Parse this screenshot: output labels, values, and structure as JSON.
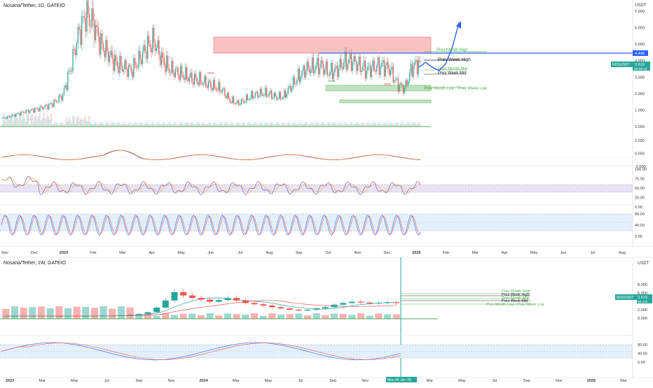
{
  "top_panel": {
    "title": "Nosana/Tether, 1D, GATEIO",
    "currency": "USDT",
    "price_ticks": [
      "7.000",
      "6.000",
      "5.000",
      "4.000",
      "3.000",
      "2.000",
      "1.000",
      "0.000"
    ],
    "macd_ticks": [
      "2.000",
      "0.000",
      "-2.000"
    ],
    "rsi_ticks": [
      "100.00",
      "75.00",
      "50.00",
      "25.00",
      "0.00"
    ],
    "stoch_ticks": [
      "80.00",
      "40.00",
      "0.00"
    ],
    "time_ticks": [
      "Nov",
      "Dec",
      "2024",
      "Feb",
      "Mar",
      "Apr",
      "May",
      "Jun",
      "Jul",
      "Aug",
      "Sep",
      "Oct",
      "Nov",
      "Dec",
      "2025",
      "Feb",
      "Mar",
      "Apr",
      "May",
      "Jun",
      "Jul",
      "Aug"
    ],
    "level_labels": {
      "prev_month_high": "Prev Month High",
      "prev_week_high": "Prev Week High",
      "prev_month_mid": "Prev Month Mid",
      "prev_week_mid": "Prev Week Mid",
      "prev_low": "Prev Month Low / Prev Week Low"
    },
    "line_price_tag": "4.448",
    "symbol_tag": "NOSUSDT",
    "symbol_price": "3.619",
    "countdown": "20:39:42",
    "msb_labels": [
      "MSB",
      "MSB",
      "MSB"
    ],
    "colors": {
      "up": "#26a69a",
      "down": "#ef5350",
      "level": "#4caf50",
      "blue_line": "#2962ff",
      "red_zone": "#f8a7a7"
    }
  },
  "bottom_panel": {
    "title": "Nosana/Tether, 1W, GATEIO",
    "currency": "USDT",
    "price_ticks": [
      "8.000",
      "6.000",
      "4.000",
      "2.000",
      "0.000"
    ],
    "stoch_ticks": [
      "80.00",
      "40.00",
      "0.00"
    ],
    "time_ticks": [
      "2023",
      "Mar",
      "May",
      "Jul",
      "Sep",
      "Nov",
      "2024",
      "Mar",
      "May",
      "Jul",
      "Sep",
      "Nov",
      "2025",
      "Mar",
      "May",
      "Jul",
      "Sep",
      "Nov",
      "2026",
      "Mar"
    ],
    "cursor_date": "Mon 06 Jan '25",
    "level_labels": {
      "prev_month_high": "Prev Month High",
      "prev_week_high": "Prev Week High",
      "prev_month_mid": "Prev Month Mid",
      "prev_week_mid": "Prev Week Mid",
      "prev_low": "Prev Month Low / Prev Week Low"
    },
    "symbol_tag": "NOSUSDT",
    "symbol_price": "3.619",
    "countdown": "6d 21h"
  },
  "chart_data": [
    {
      "type": "candlestick",
      "title": "Nosana/Tether, 1D, GATEIO",
      "ylabel": "USDT",
      "ylim": [
        0,
        7.4
      ],
      "x_range": [
        "2023-11",
        "2025-08"
      ],
      "series": [
        {
          "name": "",
          "values": [
            0.5,
            0.6,
            0.75,
            0.9,
            1.0,
            1.1,
            1.25,
            1.5,
            1.9,
            3.5,
            5.5,
            6.8,
            6.3,
            5.0,
            4.4,
            3.8,
            3.6,
            3.4,
            4.0,
            4.8,
            5.2,
            4.1,
            3.5,
            3.3,
            3.1,
            2.9,
            2.8,
            2.6,
            2.4,
            2.2,
            1.6,
            1.4,
            1.6,
            1.9,
            2.0,
            2.0,
            1.8,
            1.8,
            2.4,
            3.0,
            3.5,
            3.6,
            3.7,
            3.3,
            3.4,
            3.9,
            4.0,
            3.7,
            3.4,
            3.6,
            3.7,
            3.5,
            2.6,
            2.3,
            3.6,
            3.9
          ]
        }
      ],
      "levels": {
        "prev_month_high": 4.5,
        "prev_week_high": 4.0,
        "prev_month_mid": 3.6,
        "prev_week_mid": 3.2,
        "prev_low": 2.2,
        "blue_line": 4.448
      },
      "projection": [
        3.6,
        3.9,
        3.6,
        3.4,
        3.8,
        4.8,
        6.3
      ]
    },
    {
      "type": "candlestick",
      "title": "Nosana/Tether, 1W, GATEIO",
      "ylabel": "USDT",
      "ylim": [
        0,
        9.5
      ],
      "x_range": [
        "2023-01",
        "2026-03"
      ],
      "series": [
        {
          "name": "",
          "values": [
            0.5,
            0.5,
            0.55,
            0.5,
            0.55,
            0.5,
            0.5,
            0.55,
            0.5,
            0.5,
            0.55,
            0.6,
            0.6,
            0.7,
            0.8,
            1.0,
            1.4,
            2.5,
            4.2,
            6.2,
            5.4,
            4.8,
            4.4,
            3.9,
            4.3,
            4.8,
            4.2,
            3.6,
            3.3,
            3.0,
            2.6,
            2.3,
            2.0,
            1.8,
            2.0,
            2.3,
            2.6,
            3.2,
            3.6,
            3.9,
            3.7,
            3.5,
            3.6,
            3.8,
            3.6
          ]
        }
      ]
    }
  ]
}
